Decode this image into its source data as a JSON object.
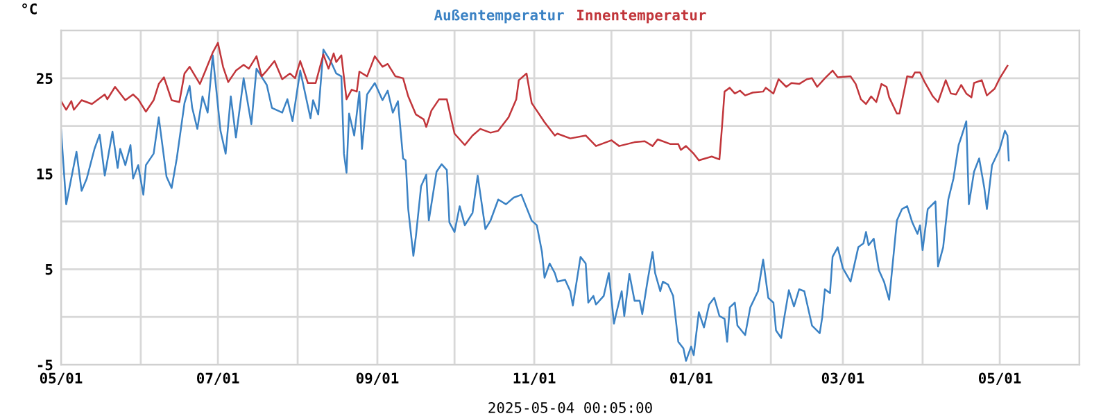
{
  "chart_data": {
    "type": "line",
    "ylabel": "°C",
    "xlabel": "2025-05-04 00:05:00",
    "xlim": [
      "2024-05-01",
      "2025-06-01"
    ],
    "xticks": [
      {
        "value": "2024-05-01",
        "label": "05/01"
      },
      {
        "value": "2024-06-01",
        "label": null
      },
      {
        "value": "2024-07-01",
        "label": "07/01"
      },
      {
        "value": "2024-08-01",
        "label": null
      },
      {
        "value": "2024-09-01",
        "label": "09/01"
      },
      {
        "value": "2024-10-01",
        "label": null
      },
      {
        "value": "2024-11-01",
        "label": "11/01"
      },
      {
        "value": "2024-12-01",
        "label": null
      },
      {
        "value": "2025-01-01",
        "label": "01/01"
      },
      {
        "value": "2025-02-01",
        "label": null
      },
      {
        "value": "2025-03-01",
        "label": "03/01"
      },
      {
        "value": "2025-04-01",
        "label": null
      },
      {
        "value": "2025-05-01",
        "label": "05/01"
      },
      {
        "value": "2025-06-01",
        "label": null
      }
    ],
    "ylim": [
      -5,
      30
    ],
    "yticks": [
      -5,
      {
        "value": 0,
        "label": null
      },
      5,
      {
        "value": 10,
        "label": null
      },
      15,
      {
        "value": 20,
        "label": null
      },
      25,
      {
        "value": 30,
        "label": null
      }
    ],
    "grid": true,
    "legend": "top",
    "marker": "none",
    "line_style": "solid",
    "series": [
      {
        "name": "Außentemperatur",
        "color": "#3b82c4",
        "x": [
          "2024-05-01",
          "2024-05-03",
          "2024-05-07",
          "2024-05-09",
          "2024-05-11",
          "2024-05-14",
          "2024-05-16",
          "2024-05-18",
          "2024-05-21",
          "2024-05-23",
          "2024-05-24",
          "2024-05-26",
          "2024-05-28",
          "2024-05-29",
          "2024-05-31",
          "2024-06-02",
          "2024-06-03",
          "2024-06-06",
          "2024-06-08",
          "2024-06-11",
          "2024-06-13",
          "2024-06-15",
          "2024-06-18",
          "2024-06-20",
          "2024-06-21",
          "2024-06-23",
          "2024-06-25",
          "2024-06-27",
          "2024-06-29",
          "2024-07-02",
          "2024-07-04",
          "2024-07-06",
          "2024-07-08",
          "2024-07-11",
          "2024-07-14",
          "2024-07-16",
          "2024-07-20",
          "2024-07-22",
          "2024-07-26",
          "2024-07-28",
          "2024-07-30",
          "2024-08-02",
          "2024-08-06",
          "2024-08-07",
          "2024-08-09",
          "2024-08-11",
          "2024-08-14",
          "2024-08-16",
          "2024-08-18",
          "2024-08-19",
          "2024-08-20",
          "2024-08-21",
          "2024-08-23",
          "2024-08-25",
          "2024-08-26",
          "2024-08-28",
          "2024-08-31",
          "2024-09-03",
          "2024-09-05",
          "2024-09-07",
          "2024-09-09",
          "2024-09-11",
          "2024-09-12",
          "2024-09-13",
          "2024-09-15",
          "2024-09-16",
          "2024-09-18",
          "2024-09-20",
          "2024-09-21",
          "2024-09-24",
          "2024-09-26",
          "2024-09-28",
          "2024-09-29",
          "2024-10-01",
          "2024-10-03",
          "2024-10-05",
          "2024-10-08",
          "2024-10-10",
          "2024-10-13",
          "2024-10-15",
          "2024-10-18",
          "2024-10-21",
          "2024-10-24",
          "2024-10-27",
          "2024-10-31",
          "2024-11-02",
          "2024-11-04",
          "2024-11-05",
          "2024-11-07",
          "2024-11-09",
          "2024-11-10",
          "2024-11-13",
          "2024-11-15",
          "2024-11-16",
          "2024-11-19",
          "2024-11-21",
          "2024-11-22",
          "2024-11-24",
          "2024-11-25",
          "2024-11-28",
          "2024-11-30",
          "2024-12-02",
          "2024-12-03",
          "2024-12-05",
          "2024-12-06",
          "2024-12-08",
          "2024-12-10",
          "2024-12-12",
          "2024-12-13",
          "2024-12-15",
          "2024-12-17",
          "2024-12-18",
          "2024-12-20",
          "2024-12-21",
          "2024-12-23",
          "2024-12-25",
          "2024-12-27",
          "2024-12-29",
          "2024-12-30",
          "2025-01-01",
          "2025-01-02",
          "2025-01-04",
          "2025-01-06",
          "2025-01-08",
          "2025-01-10",
          "2025-01-12",
          "2025-01-14",
          "2025-01-15",
          "2025-01-16",
          "2025-01-18",
          "2025-01-19",
          "2025-01-22",
          "2025-01-24",
          "2025-01-27",
          "2025-01-29",
          "2025-01-31",
          "2025-02-02",
          "2025-02-03",
          "2025-02-05",
          "2025-02-06",
          "2025-02-08",
          "2025-02-10",
          "2025-02-12",
          "2025-02-14",
          "2025-02-17",
          "2025-02-20",
          "2025-02-21",
          "2025-02-22",
          "2025-02-24",
          "2025-02-25",
          "2025-02-27",
          "2025-03-01",
          "2025-03-04",
          "2025-03-07",
          "2025-03-09",
          "2025-03-10",
          "2025-03-11",
          "2025-03-13",
          "2025-03-15",
          "2025-03-17",
          "2025-03-19",
          "2025-03-21",
          "2025-03-22",
          "2025-03-24",
          "2025-03-26",
          "2025-03-28",
          "2025-03-30",
          "2025-03-31",
          "2025-04-01",
          "2025-04-03",
          "2025-04-06",
          "2025-04-07",
          "2025-04-09",
          "2025-04-11",
          "2025-04-13",
          "2025-04-15",
          "2025-04-16",
          "2025-04-18",
          "2025-04-19",
          "2025-04-21",
          "2025-04-23",
          "2025-04-25",
          "2025-04-26",
          "2025-04-28",
          "2025-05-01",
          "2025-05-03",
          "2025-05-04",
          "2025-05-04T12:00"
        ],
        "values": [
          19.6,
          11.8,
          17.3,
          13.2,
          14.5,
          17.6,
          19.1,
          14.8,
          19.4,
          15.6,
          17.6,
          15.9,
          18.0,
          14.5,
          15.9,
          12.8,
          15.9,
          17.1,
          20.9,
          14.7,
          13.5,
          16.6,
          22.4,
          24.2,
          21.9,
          19.7,
          23.1,
          21.4,
          27.4,
          19.5,
          17.1,
          23.1,
          18.8,
          25.0,
          20.2,
          26.0,
          24.3,
          21.9,
          21.4,
          22.8,
          20.5,
          25.8,
          20.8,
          22.7,
          21.2,
          28.0,
          26.7,
          25.5,
          25.2,
          17.1,
          15.1,
          21.3,
          19.0,
          23.6,
          17.6,
          23.3,
          24.5,
          22.7,
          23.7,
          21.4,
          22.6,
          16.6,
          16.4,
          11.3,
          6.4,
          8.5,
          13.7,
          14.9,
          10.1,
          15.2,
          16.0,
          15.4,
          9.9,
          8.9,
          11.6,
          9.6,
          10.9,
          14.8,
          9.2,
          10.1,
          12.3,
          11.8,
          12.5,
          12.8,
          10.1,
          9.6,
          6.8,
          4.1,
          5.6,
          4.6,
          3.7,
          3.9,
          2.7,
          1.2,
          6.3,
          5.6,
          1.5,
          2.2,
          1.3,
          2.2,
          4.6,
          -0.7,
          0.5,
          2.7,
          0.1,
          4.5,
          1.7,
          1.7,
          0.3,
          3.7,
          6.8,
          4.6,
          2.7,
          3.7,
          3.4,
          2.2,
          -2.6,
          -3.3,
          -4.6,
          -3.1,
          -4.0,
          0.5,
          -1.1,
          1.3,
          2.0,
          0.1,
          -0.2,
          -2.6,
          1.0,
          1.5,
          -0.9,
          -1.9,
          1.0,
          2.7,
          6.0,
          2.0,
          1.5,
          -1.4,
          -2.2,
          -0.4,
          2.8,
          1.1,
          2.9,
          2.7,
          -0.9,
          -1.7,
          0.0,
          2.9,
          2.5,
          6.3,
          7.3,
          5.1,
          3.7,
          7.3,
          7.7,
          8.9,
          7.5,
          8.2,
          4.9,
          3.7,
          1.8,
          7.3,
          10.1,
          11.3,
          11.6,
          9.9,
          8.7,
          9.6,
          7.0,
          11.3,
          12.1,
          5.3,
          7.3,
          12.3,
          14.5,
          18.0,
          18.8,
          20.5,
          11.8,
          15.2,
          16.6,
          13.5,
          11.3,
          15.9,
          17.6,
          19.5,
          19.0,
          16.4
        ]
      },
      {
        "name": "Innentemperatur",
        "color": "#c1353a",
        "x": [
          "2024-05-01",
          "2024-05-03",
          "2024-05-05",
          "2024-05-06",
          "2024-05-09",
          "2024-05-13",
          "2024-05-18",
          "2024-05-19",
          "2024-05-22",
          "2024-05-26",
          "2024-05-29",
          "2024-05-31",
          "2024-06-03",
          "2024-06-06",
          "2024-06-08",
          "2024-06-10",
          "2024-06-13",
          "2024-06-16",
          "2024-06-18",
          "2024-06-20",
          "2024-06-24",
          "2024-06-26",
          "2024-06-29",
          "2024-07-01",
          "2024-07-03",
          "2024-07-05",
          "2024-07-08",
          "2024-07-11",
          "2024-07-13",
          "2024-07-16",
          "2024-07-18",
          "2024-07-20",
          "2024-07-23",
          "2024-07-26",
          "2024-07-29",
          "2024-07-31",
          "2024-08-02",
          "2024-08-05",
          "2024-08-08",
          "2024-08-11",
          "2024-08-13",
          "2024-08-15",
          "2024-08-16",
          "2024-08-18",
          "2024-08-20",
          "2024-08-22",
          "2024-08-24",
          "2024-08-25",
          "2024-08-28",
          "2024-08-31",
          "2024-09-03",
          "2024-09-05",
          "2024-09-08",
          "2024-09-11",
          "2024-09-13",
          "2024-09-16",
          "2024-09-19",
          "2024-09-20",
          "2024-09-22",
          "2024-09-25",
          "2024-09-28",
          "2024-10-01",
          "2024-10-05",
          "2024-10-08",
          "2024-10-11",
          "2024-10-15",
          "2024-10-18",
          "2024-10-22",
          "2024-10-25",
          "2024-10-26",
          "2024-10-29",
          "2024-10-31",
          "2024-11-02",
          "2024-11-05",
          "2024-11-09",
          "2024-11-10",
          "2024-11-15",
          "2024-11-21",
          "2024-11-25",
          "2024-12-01",
          "2024-12-04",
          "2024-12-10",
          "2024-12-14",
          "2024-12-17",
          "2024-12-19",
          "2024-12-24",
          "2024-12-27",
          "2024-12-28",
          "2024-12-30",
          "2025-01-02",
          "2025-01-04",
          "2025-01-09",
          "2025-01-12",
          "2025-01-13",
          "2025-01-14",
          "2025-01-16",
          "2025-01-18",
          "2025-01-20",
          "2025-01-22",
          "2025-01-25",
          "2025-01-29",
          "2025-01-30",
          "2025-02-02",
          "2025-02-04",
          "2025-02-07",
          "2025-02-09",
          "2025-02-12",
          "2025-02-15",
          "2025-02-17",
          "2025-02-19",
          "2025-02-22",
          "2025-02-25",
          "2025-02-27",
          "2025-03-04",
          "2025-03-06",
          "2025-03-08",
          "2025-03-10",
          "2025-03-12",
          "2025-03-14",
          "2025-03-16",
          "2025-03-18",
          "2025-03-19",
          "2025-03-22",
          "2025-03-23",
          "2025-03-26",
          "2025-03-28",
          "2025-03-29",
          "2025-03-31",
          "2025-04-02",
          "2025-04-05",
          "2025-04-07",
          "2025-04-10",
          "2025-04-12",
          "2025-04-14",
          "2025-04-16",
          "2025-04-18",
          "2025-04-20",
          "2025-04-21",
          "2025-04-24",
          "2025-04-26",
          "2025-04-29",
          "2025-05-01",
          "2025-05-04"
        ],
        "values": [
          22.6,
          21.7,
          22.6,
          21.7,
          22.7,
          22.3,
          23.3,
          22.8,
          24.1,
          22.7,
          23.3,
          22.8,
          21.5,
          22.7,
          24.4,
          25.1,
          22.7,
          22.5,
          25.5,
          26.2,
          24.4,
          25.7,
          27.7,
          28.7,
          26.2,
          24.6,
          25.8,
          26.4,
          26.0,
          27.3,
          25.2,
          25.8,
          26.8,
          24.9,
          25.5,
          25.0,
          26.8,
          24.5,
          24.5,
          27.5,
          26.0,
          27.6,
          26.7,
          27.4,
          22.8,
          23.8,
          23.6,
          25.7,
          25.2,
          27.3,
          26.2,
          26.5,
          25.2,
          25.0,
          23.1,
          21.2,
          20.7,
          19.9,
          21.6,
          22.8,
          22.8,
          19.2,
          18.0,
          19.0,
          19.7,
          19.3,
          19.5,
          20.9,
          22.8,
          24.8,
          25.5,
          22.4,
          21.6,
          20.4,
          19.0,
          19.2,
          18.7,
          19.0,
          17.9,
          18.5,
          17.9,
          18.3,
          18.4,
          17.9,
          18.6,
          18.1,
          18.1,
          17.5,
          17.9,
          17.1,
          16.4,
          16.8,
          16.5,
          19.9,
          23.6,
          24.0,
          23.4,
          23.7,
          23.2,
          23.5,
          23.6,
          24.0,
          23.4,
          24.9,
          24.1,
          24.5,
          24.4,
          24.9,
          25.0,
          24.1,
          25.0,
          25.8,
          25.1,
          25.2,
          24.4,
          22.8,
          22.3,
          23.1,
          22.5,
          24.4,
          24.1,
          23.0,
          21.3,
          21.3,
          25.2,
          25.1,
          25.6,
          25.6,
          24.5,
          23.1,
          22.5,
          24.8,
          23.4,
          23.3,
          24.3,
          23.4,
          23.0,
          24.5,
          24.8,
          23.2,
          23.9,
          25.0,
          26.3
        ]
      }
    ]
  }
}
